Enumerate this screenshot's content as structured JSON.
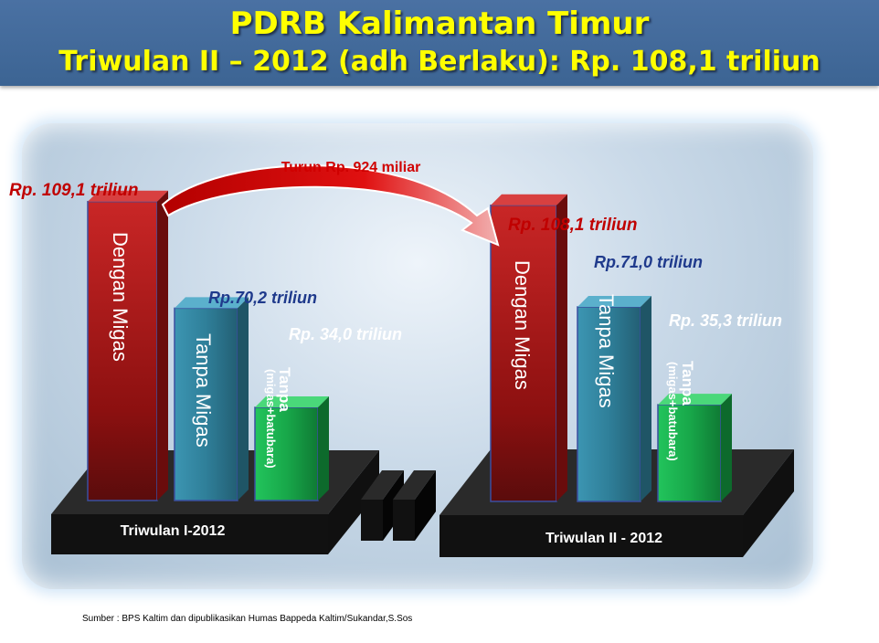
{
  "header": {
    "title": "PDRB Kalimantan Timur",
    "subtitle": "Triwulan II – 2012 (adh Berlaku): Rp. 108,1 triliun"
  },
  "annotation": {
    "change_label": "Turun Rp. 924 miliar"
  },
  "source": "Sumber : BPS Kaltim dan dipublikasikan Humas Bappeda Kaltim/Sukandar,S.Sos",
  "colors": {
    "dengan_migas": "#8e1010",
    "tanpa_migas": "#2f7f99",
    "tanpa_migas_batubara": "#1aa84c",
    "header": "#3c6493",
    "title": "#ffff00"
  },
  "chart_data": {
    "type": "bar",
    "title": "PDRB Kalimantan Timur",
    "categories": [
      "Triwulan I-2012",
      "Triwulan II - 2012"
    ],
    "series": [
      {
        "name": "Dengan Migas",
        "values": [
          109.1,
          108.1
        ],
        "value_labels": [
          "Rp. 109,1 triliun",
          "Rp. 108,1 triliun"
        ]
      },
      {
        "name": "Tanpa Migas",
        "values": [
          70.2,
          71.0
        ],
        "value_labels": [
          "Rp.70,2 triliun",
          "Rp.71,0 triliun"
        ]
      },
      {
        "name": "Tanpa (migas+batubara)",
        "values": [
          34.0,
          35.3
        ],
        "value_labels": [
          "Rp. 34,0 triliun",
          "Rp. 35,3 triliun"
        ]
      }
    ],
    "unit": "triliun rupiah"
  }
}
